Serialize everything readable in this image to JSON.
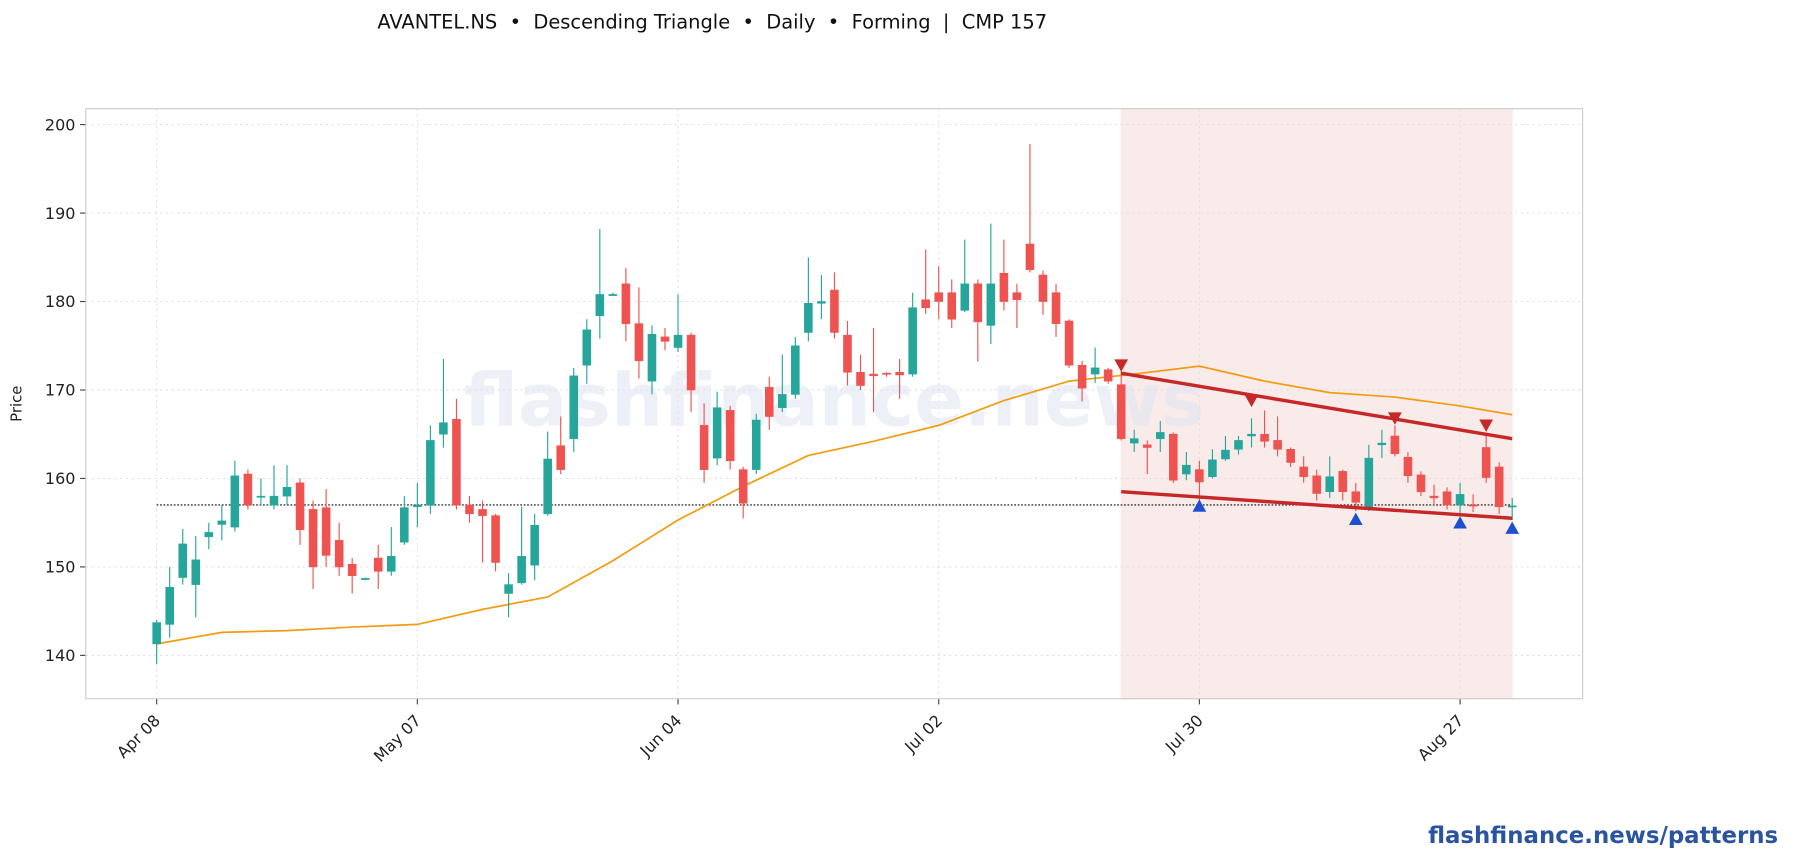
{
  "chart_data": {
    "type": "candlestick",
    "title": "AVANTEL.NS  •  Descending Triangle  •  Daily  •  Forming  |  CMP 157",
    "ylabel": "Price",
    "watermark": "flashfinance.news",
    "footer": "flashfinance.news/patterns",
    "categories": [
      "Apr 08",
      null,
      null,
      null,
      null,
      null,
      null,
      null,
      null,
      null,
      null,
      null,
      null,
      null,
      null,
      null,
      null,
      null,
      null,
      null,
      "May 07",
      null,
      null,
      null,
      null,
      null,
      null,
      null,
      null,
      null,
      null,
      null,
      null,
      null,
      null,
      null,
      null,
      null,
      null,
      null,
      "Jun 04",
      null,
      null,
      null,
      null,
      null,
      null,
      null,
      null,
      null,
      null,
      null,
      null,
      null,
      null,
      null,
      null,
      null,
      null,
      null,
      "Jul 02",
      null,
      null,
      null,
      null,
      null,
      null,
      null,
      null,
      null,
      null,
      null,
      null,
      null,
      null,
      null,
      null,
      null,
      null,
      null,
      "Jul 30",
      null,
      null,
      null,
      null,
      null,
      null,
      null,
      null,
      null,
      null,
      null,
      null,
      null,
      null,
      null,
      null,
      null,
      null,
      null,
      "Aug 27",
      null,
      null,
      null,
      null
    ],
    "open": [
      141.3,
      143.5,
      148.8,
      148,
      153.4,
      154.8,
      154.5,
      160.5,
      157.9,
      157,
      158,
      159.5,
      156.5,
      156.7,
      153,
      150.3,
      148.7,
      151,
      149.5,
      152.8,
      156.8,
      157,
      165,
      166.7,
      157,
      156.5,
      155.8,
      147,
      148.2,
      150.2,
      156,
      163.7,
      164.5,
      172.8,
      178.4,
      180.8,
      182,
      177.5,
      171,
      176,
      174.8,
      176.2,
      166,
      162.3,
      167.7,
      161,
      161,
      170.3,
      168,
      169.5,
      176.5,
      179.8,
      181.3,
      176.2,
      172,
      171.8,
      171.9,
      172,
      171.8,
      180.2,
      181,
      181,
      179,
      182,
      177.3,
      183.2,
      181,
      186.5,
      183,
      181,
      177.8,
      172.8,
      171.8,
      172.3,
      170.6,
      164,
      163.8,
      164.5,
      165,
      160.5,
      161,
      160.2,
      162.2,
      163.3,
      164.8,
      165,
      164.3,
      163.3,
      161.3,
      160.3,
      158.5,
      160.8,
      158.5,
      156.8,
      163.8,
      164.8,
      162.4,
      160.4,
      158,
      158.5,
      157,
      157,
      163.5,
      161.3,
      156.8
    ],
    "high": [
      144,
      150,
      154.3,
      153.5,
      155,
      157,
      162,
      161,
      160,
      161.5,
      161.5,
      160,
      157.5,
      158.8,
      155,
      151,
      148.8,
      152.5,
      154.5,
      158,
      159.5,
      166,
      173.5,
      169,
      158,
      157.5,
      156,
      149.3,
      156.8,
      156,
      165.3,
      167,
      172.5,
      178,
      188.2,
      181,
      183.8,
      181.6,
      177.3,
      177,
      180.8,
      176.5,
      168.5,
      169.8,
      168.2,
      161.3,
      167.3,
      171.5,
      174,
      176,
      185,
      183,
      183.3,
      177.8,
      174,
      177,
      172,
      173.5,
      181,
      185.9,
      184,
      182.5,
      187,
      182.5,
      188.8,
      187,
      182,
      197.8,
      183.5,
      182,
      178,
      173.3,
      174.8,
      172.5,
      172.2,
      165.5,
      164.3,
      166.5,
      165.2,
      163,
      162,
      163.3,
      164.8,
      164.8,
      166.8,
      167.7,
      167,
      163.5,
      162.5,
      161,
      162.5,
      161,
      159.5,
      163.8,
      165.5,
      166,
      163,
      160.8,
      159.3,
      159,
      159.5,
      158.2,
      165,
      161.8,
      157.8
    ],
    "low": [
      139,
      142,
      148,
      144.3,
      152,
      153,
      154,
      156.5,
      157,
      156.5,
      157,
      152.5,
      147.5,
      150,
      149,
      147,
      148.5,
      147.5,
      149,
      152.5,
      154.5,
      156,
      163.5,
      156.5,
      155,
      150.5,
      149.5,
      144.3,
      148,
      148.5,
      155.8,
      160.5,
      163,
      170.7,
      175.8,
      180.7,
      175.5,
      171.3,
      169.5,
      174.5,
      174.3,
      167.5,
      159.5,
      161.5,
      161,
      155.5,
      160.5,
      165.5,
      167.5,
      169,
      175.5,
      178,
      175.8,
      170.5,
      170,
      167.5,
      171.5,
      169,
      171.5,
      178.6,
      178,
      177,
      178.8,
      173.2,
      175.2,
      179,
      177,
      183.3,
      178.5,
      176,
      172.5,
      168.7,
      170.8,
      170.7,
      164.3,
      163,
      160.5,
      163,
      159.5,
      159.8,
      157.4,
      160,
      162,
      162.7,
      163.5,
      163.5,
      162.5,
      161.3,
      159.5,
      157.5,
      157.8,
      157.5,
      156.3,
      156.3,
      162.3,
      162.5,
      159.5,
      158,
      157,
      156.5,
      156,
      156.2,
      159.5,
      156,
      155.3
    ],
    "close": [
      143.7,
      147.7,
      152.6,
      150.8,
      153.9,
      155.2,
      160.3,
      157,
      158,
      158,
      159,
      154.2,
      150,
      151.3,
      150,
      149,
      148.7,
      149.5,
      151.2,
      156.7,
      157,
      164.3,
      166.3,
      157,
      156,
      155.8,
      150.5,
      148,
      151.2,
      154.7,
      162.2,
      161,
      171.6,
      176.8,
      180.8,
      180.8,
      177.5,
      173.3,
      176.3,
      175.5,
      176.2,
      170,
      161,
      168,
      162,
      157.2,
      166.6,
      167,
      169.5,
      175,
      179.8,
      180,
      176.5,
      172,
      170.5,
      171.6,
      171.8,
      171.7,
      179.3,
      179.3,
      180,
      178,
      182,
      177.7,
      182,
      180,
      180.2,
      183.6,
      180,
      177.5,
      172.8,
      170.2,
      172.5,
      171,
      164.5,
      164.5,
      163.5,
      165.2,
      159.8,
      161.5,
      159.6,
      162.1,
      163.2,
      164.3,
      165,
      164.2,
      163.3,
      161.8,
      160.2,
      158.3,
      160.2,
      158.5,
      157.3,
      162.3,
      164,
      162.8,
      160.3,
      158.5,
      157.8,
      157,
      158.2,
      156.9,
      160.1,
      156.8,
      156.9
    ],
    "up_color": "#26a69a",
    "down_color": "#ef5350",
    "ma": {
      "color": "#f39c12",
      "x": [
        0,
        5,
        10,
        15,
        20,
        25,
        30,
        35,
        40,
        45,
        50,
        55,
        60,
        65,
        70,
        75,
        80,
        85,
        90,
        95,
        100,
        104
      ],
      "values": [
        141.3,
        142.6,
        142.8,
        143.2,
        143.5,
        145.2,
        146.6,
        150.7,
        155.3,
        159.1,
        162.6,
        164.2,
        166.0,
        168.8,
        171.0,
        171.8,
        172.7,
        171.0,
        169.7,
        169.2,
        168.2,
        167.2
      ]
    },
    "pattern": {
      "start": 74,
      "end": 104,
      "color": "#f5d5d5"
    },
    "trendlines": {
      "color": "#c62828",
      "upper": {
        "x": [
          74,
          104
        ],
        "values": [
          171.9,
          164.5
        ]
      },
      "lower": {
        "x": [
          74,
          104
        ],
        "values": [
          158.5,
          155.5
        ]
      }
    },
    "cmp_line": {
      "value": 157,
      "x": [
        0,
        104
      ]
    },
    "peaks": {
      "color": "#c62828",
      "x": [
        74,
        84,
        95,
        102
      ],
      "values": [
        172.3,
        168.3,
        166.3,
        165.5
      ]
    },
    "troughs": {
      "color": "#1f4fd1",
      "x": [
        80,
        92,
        100,
        104
      ],
      "values": [
        157.4,
        155.9,
        155.5,
        154.9
      ]
    },
    "xlim": [
      -5.44,
      109.4
    ],
    "ylim": [
      135.1,
      201.8
    ],
    "yticks": [
      140,
      150,
      160,
      170,
      180,
      190,
      200
    ],
    "grid": true
  }
}
